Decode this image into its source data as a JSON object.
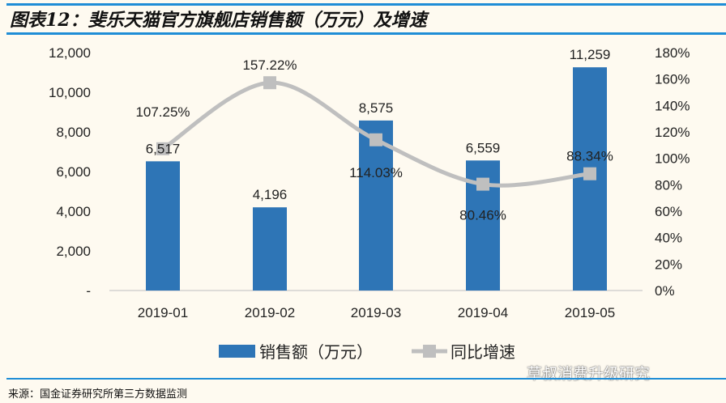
{
  "title": "图表12：斐乐天猫官方旗舰店销售额（万元）及增速",
  "source": "来源：国金证券研究所第三方数据监测",
  "watermark": "草叔消费升级研究",
  "chart_data": {
    "type": "bar+line",
    "categories": [
      "2019-01",
      "2019-02",
      "2019-03",
      "2019-04",
      "2019-05"
    ],
    "series": [
      {
        "name": "销售额（万元）",
        "type": "bar",
        "axis": "left",
        "color": "#2e75b6",
        "values": [
          6517,
          4196,
          8575,
          6559,
          11259
        ],
        "labels": [
          "6,517",
          "4,196",
          "8,575",
          "6,559",
          "11,259"
        ]
      },
      {
        "name": "同比增速",
        "type": "line",
        "axis": "right",
        "color": "#bfbfbf",
        "values": [
          107.25,
          157.22,
          114.03,
          80.46,
          88.34
        ],
        "labels": [
          "107.25%",
          "157.22%",
          "114.03%",
          "80.46%",
          "88.34%"
        ]
      }
    ],
    "y_left": {
      "range": [
        0,
        12000
      ],
      "ticks": [
        "-",
        "2,000",
        "4,000",
        "6,000",
        "8,000",
        "10,000",
        "12,000"
      ]
    },
    "y_right": {
      "range": [
        0,
        180
      ],
      "ticks": [
        "0%",
        "20%",
        "40%",
        "60%",
        "80%",
        "100%",
        "120%",
        "140%",
        "160%",
        "180%"
      ]
    },
    "legend": "bottom",
    "grid": false
  }
}
